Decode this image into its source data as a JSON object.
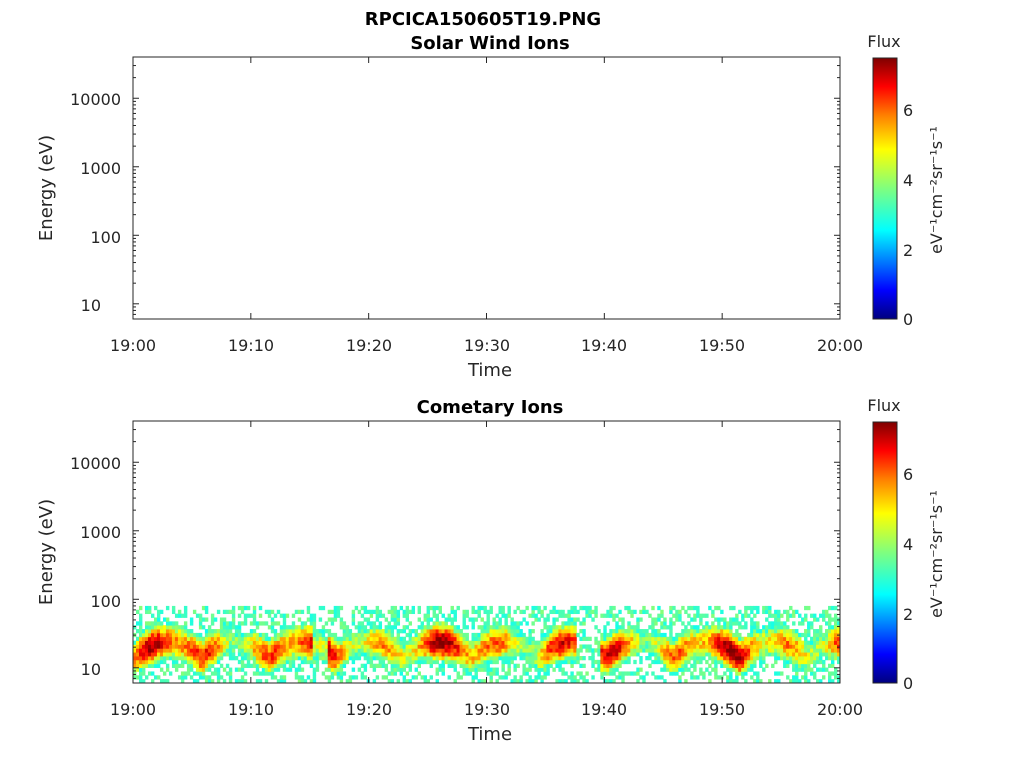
{
  "figure_title": "RPCICA150605T19.PNG",
  "colorbar_colors": [
    "#00007f",
    "#0000ff",
    "#007fff",
    "#00ffff",
    "#7fff7f",
    "#ffff00",
    "#ff7f00",
    "#ff0000",
    "#7f0000"
  ],
  "chart_data": [
    {
      "type": "heatmap",
      "title": "Solar Wind Ions",
      "xlabel": "Time",
      "ylabel": "Energy (eV)",
      "x_ticks": [
        "19:00",
        "19:10",
        "19:20",
        "19:30",
        "19:40",
        "19:50",
        "20:00"
      ],
      "y_ticks": [
        "10",
        "100",
        "1000",
        "10000"
      ],
      "y_scale": "log",
      "ylim": [
        6,
        40000
      ],
      "colorbar": {
        "title": "Flux",
        "label": "eV⁻¹cm⁻²sr⁻¹s⁻¹",
        "ticks": [
          "0",
          "2",
          "4",
          "6"
        ],
        "range": [
          0,
          7.5
        ]
      },
      "data": "empty"
    },
    {
      "type": "heatmap",
      "title": "Cometary Ions",
      "xlabel": "Time",
      "ylabel": "Energy (eV)",
      "x_ticks": [
        "19:00",
        "19:10",
        "19:20",
        "19:30",
        "19:40",
        "19:50",
        "20:00"
      ],
      "y_ticks": [
        "10",
        "100",
        "1000",
        "10000"
      ],
      "y_scale": "log",
      "ylim": [
        6,
        40000
      ],
      "colorbar": {
        "title": "Flux",
        "label": "eV⁻¹cm⁻²sr⁻¹s⁻¹",
        "ticks": [
          "0",
          "2",
          "4",
          "6"
        ],
        "range": [
          0,
          7.5
        ]
      },
      "data": "ion flux concentrated between ~6 and ~80 eV throughout the hour, peak flux ~7"
    }
  ]
}
